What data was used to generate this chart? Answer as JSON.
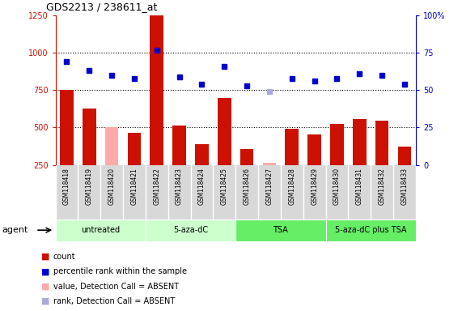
{
  "title": "GDS2213 / 238611_at",
  "samples": [
    "GSM118418",
    "GSM118419",
    "GSM118420",
    "GSM118421",
    "GSM118422",
    "GSM118423",
    "GSM118424",
    "GSM118425",
    "GSM118426",
    "GSM118427",
    "GSM118428",
    "GSM118429",
    "GSM118430",
    "GSM118431",
    "GSM118432",
    "GSM118433"
  ],
  "counts": [
    750,
    625,
    505,
    465,
    1250,
    515,
    390,
    700,
    355,
    265,
    490,
    455,
    525,
    555,
    545,
    370
  ],
  "counts_absent": [
    false,
    false,
    true,
    false,
    false,
    false,
    false,
    false,
    false,
    true,
    false,
    false,
    false,
    false,
    false,
    false
  ],
  "percentile_ranks_pct": [
    69,
    63,
    60,
    58,
    77,
    59,
    54,
    66,
    53,
    49,
    58,
    56,
    58,
    61,
    60,
    54
  ],
  "rank_absent_idx": 9,
  "ylim_left": [
    250,
    1250
  ],
  "ylim_right": [
    0,
    100
  ],
  "yticks_left": [
    250,
    500,
    750,
    1000,
    1250
  ],
  "yticks_right": [
    0,
    25,
    50,
    75,
    100
  ],
  "groups": [
    {
      "label": "untreated",
      "start": 0,
      "end": 4,
      "color": "#ccffcc"
    },
    {
      "label": "5-aza-dC",
      "start": 4,
      "end": 8,
      "color": "#ccffcc"
    },
    {
      "label": "TSA",
      "start": 8,
      "end": 12,
      "color": "#66ee66"
    },
    {
      "label": "5-aza-dC plus TSA",
      "start": 12,
      "end": 16,
      "color": "#66ee66"
    }
  ],
  "bar_color_present": "#cc1100",
  "bar_color_absent": "#ffaaaa",
  "dot_color_present": "#0000cc",
  "dot_color_absent": "#aaaadd",
  "bg_color": "#d8d8d8",
  "legend_items": [
    {
      "label": "count",
      "color": "#cc1100"
    },
    {
      "label": "percentile rank within the sample",
      "color": "#0000cc"
    },
    {
      "label": "value, Detection Call = ABSENT",
      "color": "#ffaaaa"
    },
    {
      "label": "rank, Detection Call = ABSENT",
      "color": "#aaaadd"
    }
  ],
  "agent_label": "agent"
}
